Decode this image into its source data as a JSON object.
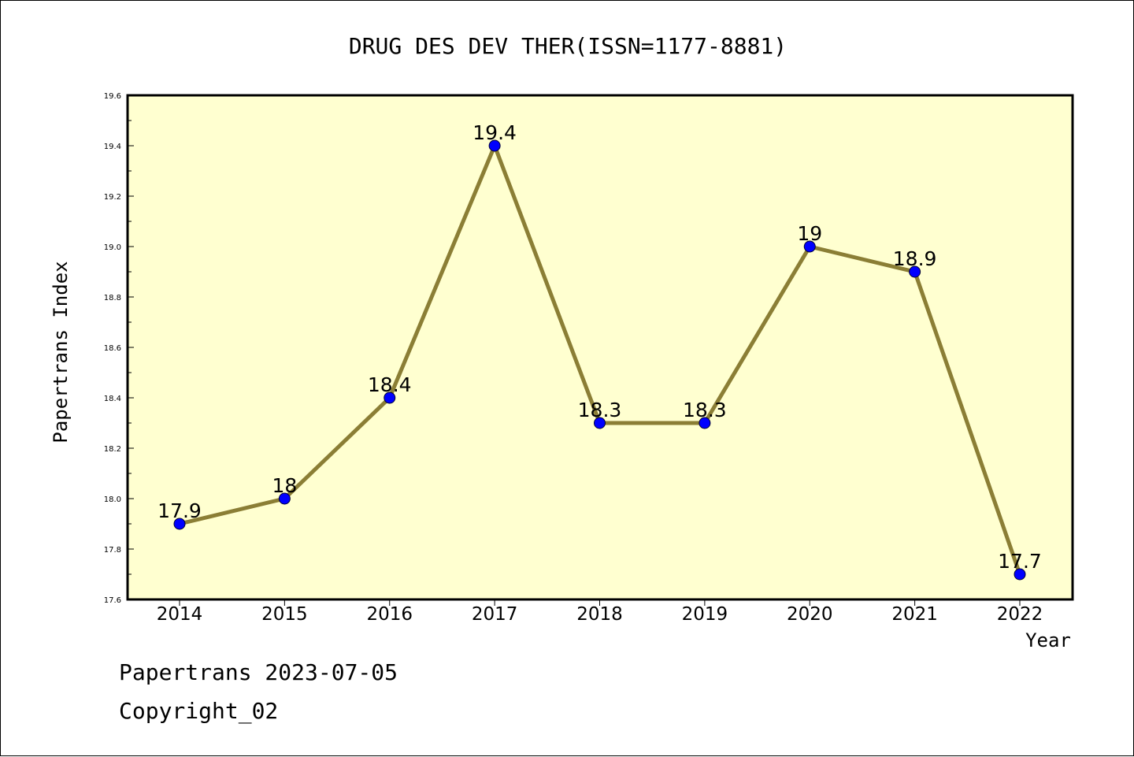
{
  "chart_data": {
    "type": "line",
    "title": "DRUG DES DEV THER(ISSN=1177-8881)",
    "xlabel": "Year",
    "ylabel": "Papertrans Index",
    "categories": [
      "2014",
      "2015",
      "2016",
      "2017",
      "2018",
      "2019",
      "2020",
      "2021",
      "2022"
    ],
    "values": [
      17.9,
      18.0,
      18.4,
      19.4,
      18.3,
      18.3,
      19.0,
      18.9,
      17.7
    ],
    "data_labels": [
      "17.9",
      "18",
      "18.4",
      "19.4",
      "18.3",
      "18.3",
      "19",
      "18.9",
      "17.7"
    ],
    "ylim": [
      17.6,
      19.6
    ],
    "yticks": [
      "17.6",
      "17.8",
      "18.0",
      "18.2",
      "18.4",
      "18.6",
      "18.8",
      "19.0",
      "19.2",
      "19.4",
      "19.6"
    ],
    "grid": false,
    "colors": {
      "plot_background": "#ffffd0",
      "line": "#8b7e35",
      "marker": "#0000ff"
    }
  },
  "footer": {
    "line1": "Papertrans 2023-07-05",
    "line2": "Copyright_02"
  }
}
